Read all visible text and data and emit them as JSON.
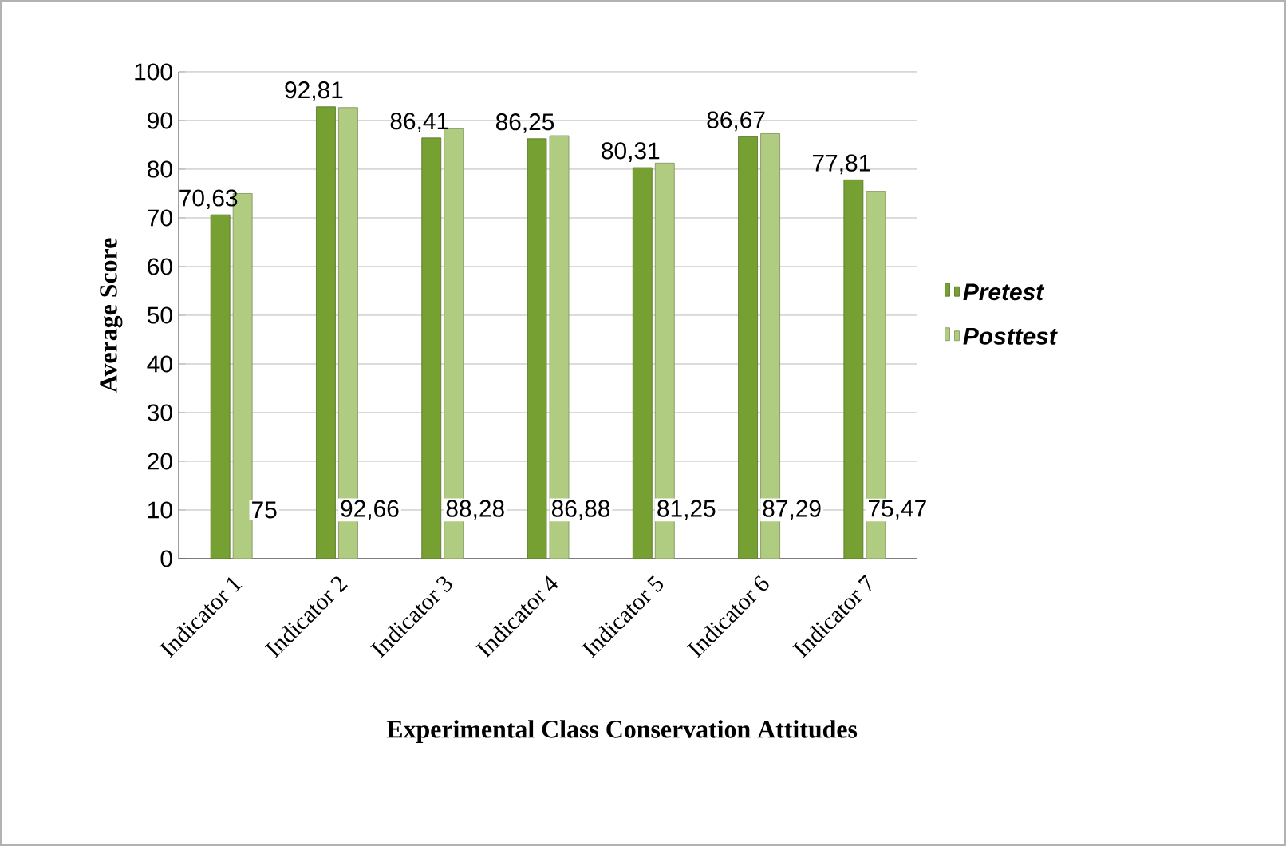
{
  "chart_data": {
    "type": "bar",
    "xlabel": "Experimental Class Conservation Attitudes",
    "ylabel": "Average Score",
    "categories": [
      "Indicator 1",
      "Indicator 2",
      "Indicator 3",
      "Indicator 4",
      "Indicator 5",
      "Indicator 6",
      "Indicator 7"
    ],
    "series": [
      {
        "name": "*Pretest*",
        "color": "#76a032",
        "values": [
          70.63,
          92.81,
          86.41,
          86.25,
          80.31,
          86.67,
          77.81
        ],
        "value_labels": [
          "70,63",
          "92,81",
          "86,41",
          "86,25",
          "80,31",
          "86,67",
          "77,81"
        ]
      },
      {
        "name": "*Posttest*",
        "color": "#b0cc80",
        "values": [
          75,
          92.66,
          88.28,
          86.88,
          81.25,
          87.29,
          75.47
        ],
        "value_labels": [
          "75",
          "92,66",
          "88,28",
          "86,88",
          "81,25",
          "87,29",
          "75,47"
        ]
      }
    ],
    "ylim": [
      0,
      100
    ],
    "yticks": [
      0,
      10,
      20,
      30,
      40,
      50,
      60,
      70,
      80,
      90,
      100
    ],
    "grid": "y",
    "legend": "right"
  }
}
